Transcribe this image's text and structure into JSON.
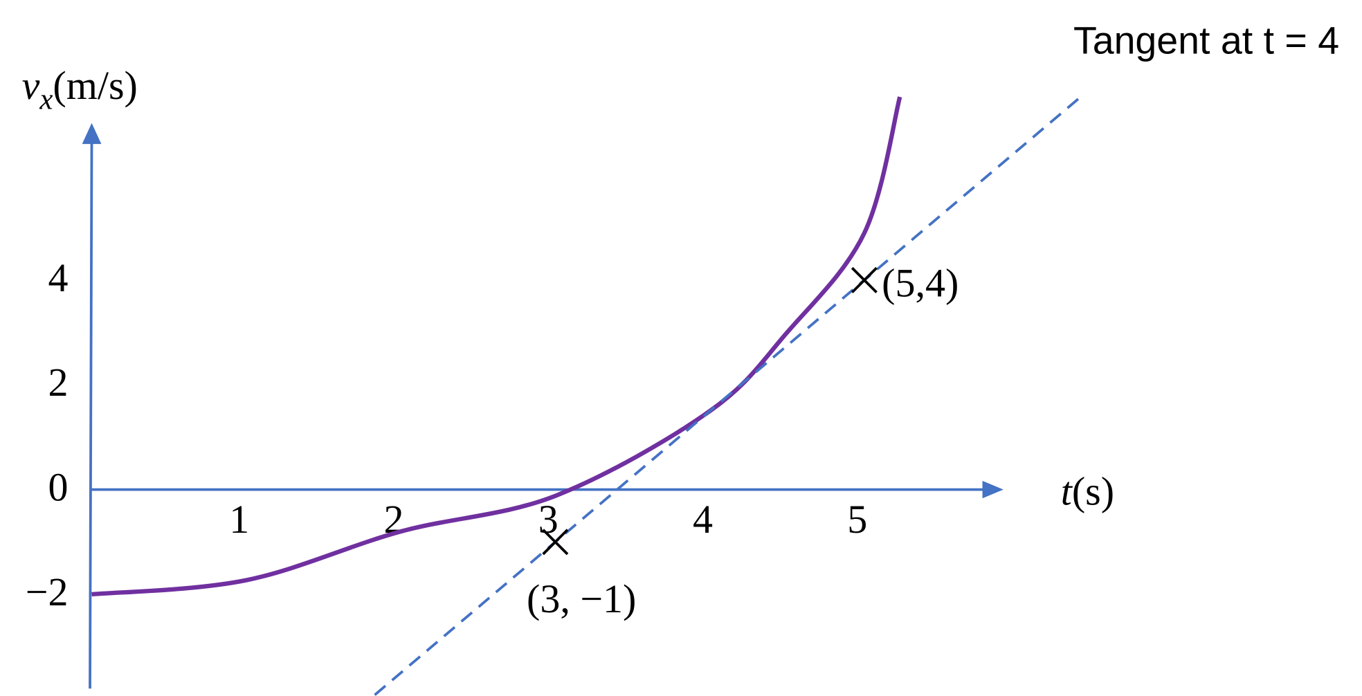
{
  "chart_data": {
    "type": "line",
    "annotation": "Tangent at t = 4",
    "x_label": {
      "symbol": "t",
      "unit": "(s)"
    },
    "y_label": {
      "symbol": "v",
      "subscript": "x",
      "unit": "(m/s)"
    },
    "xlim": [
      0,
      5.9
    ],
    "ylim": [
      -3.8,
      7.0
    ],
    "xticks": [
      1,
      2,
      3,
      4,
      5
    ],
    "yticks": [
      {
        "value": -2,
        "label": "−2"
      },
      0,
      2,
      4
    ],
    "series": [
      {
        "color": "#7030a0",
        "style": "solid",
        "x": [
          0,
          1,
          2,
          3,
          4,
          4.5,
          5,
          5.23
        ],
        "values": [
          -2,
          -1.73,
          -0.8,
          -0.12,
          1.5,
          3.0,
          4.9,
          7.5
        ]
      },
      {
        "color": "#4472c4",
        "style": "dashed",
        "x": [
          1.72,
          6.4
        ],
        "values": [
          -4.2,
          7.5
        ]
      }
    ],
    "points": [
      {
        "x": 5,
        "y": 4,
        "label": "(5,4)"
      },
      {
        "x": 3,
        "y": -1,
        "label": "(3, −1)"
      }
    ],
    "axis_color": "#4472c4"
  }
}
